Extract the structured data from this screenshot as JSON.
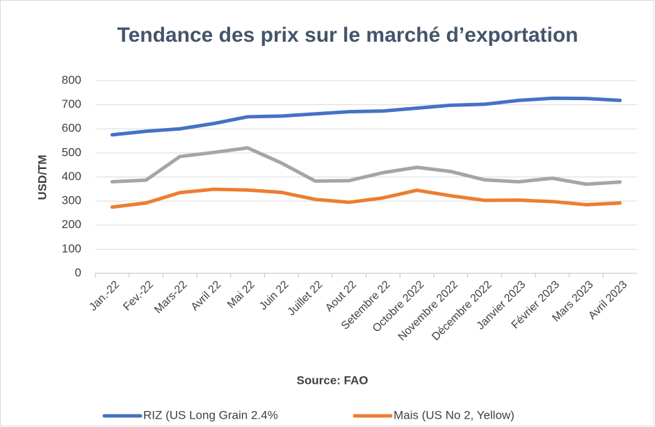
{
  "chart_data": {
    "type": "line",
    "title": "Tendance des prix sur le marché d’exportation",
    "y_label": "USD/TM",
    "x_label": "Source: FAO",
    "categories": [
      "Jan.-22",
      "Fev.-22",
      "Mars-22",
      "Avril 22",
      "Mai 22",
      "Juin 22",
      "Juillet 22",
      "Aout 22",
      "Setembre 22",
      "Octobre 2022",
      "Novembre 2022",
      "Décembre 2022",
      "Janvier 2023",
      "Février 2023",
      "Mars 2023",
      "Avril 2023"
    ],
    "series": [
      {
        "name": "RIZ (US Long Grain 2.4%",
        "color": "#4472c4",
        "values": [
          575,
          590,
          600,
          622,
          650,
          653,
          662,
          671,
          674,
          686,
          698,
          702,
          718,
          727,
          726,
          718
        ]
      },
      {
        "color": "#a5a5a5",
        "values": [
          380,
          387,
          485,
          502,
          521,
          458,
          383,
          385,
          418,
          440,
          423,
          388,
          380,
          395,
          370,
          379
        ]
      },
      {
        "name": "Mais (US No 2, Yellow)",
        "color": "#ed7d31",
        "values": [
          275,
          292,
          335,
          349,
          346,
          336,
          307,
          295,
          313,
          345,
          322,
          303,
          304,
          298,
          285,
          292
        ]
      }
    ],
    "ylim": [
      0,
      800
    ],
    "yticks": [
      0,
      100,
      200,
      300,
      400,
      500,
      600,
      700,
      800
    ],
    "grid": true,
    "legend": "bottom"
  }
}
